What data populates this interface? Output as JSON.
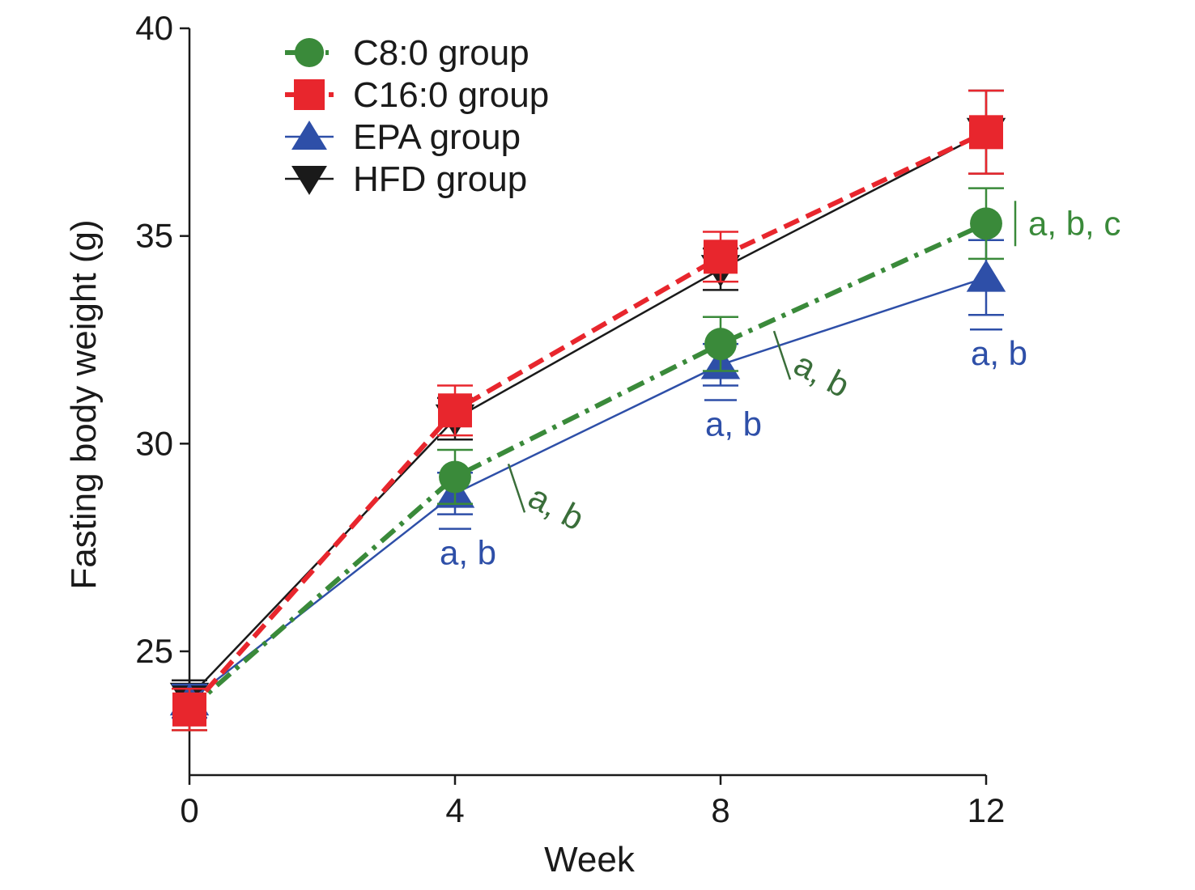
{
  "chart_data": {
    "type": "line",
    "title": "",
    "xlabel": "Week",
    "ylabel": "Fasting body weight (g)",
    "x": [
      0,
      4,
      8,
      12
    ],
    "xticks": [
      0,
      4,
      8,
      12
    ],
    "xtick_labels": [
      "0",
      "4",
      "8",
      "12"
    ],
    "xlim": [
      0,
      12
    ],
    "yticks": [
      25,
      30,
      35,
      40
    ],
    "ytick_labels": [
      "25",
      "30",
      "35",
      "40"
    ],
    "ylim": [
      22,
      40
    ],
    "grid": false,
    "legend_position": "top-left",
    "series": [
      {
        "name": "C8:0 group",
        "marker": "circle",
        "line": "dash-dot",
        "color": "#3a8a3a",
        "values": [
          23.6,
          29.2,
          32.4,
          35.3
        ],
        "err": [
          0.5,
          0.65,
          0.65,
          0.85
        ]
      },
      {
        "name": "C16:0 group",
        "marker": "square",
        "line": "dashed",
        "color": "#e8262d",
        "values": [
          23.6,
          30.8,
          34.5,
          37.5
        ],
        "err": [
          0.5,
          0.6,
          0.6,
          1.0
        ]
      },
      {
        "name": "EPA group",
        "marker": "triangle-up",
        "line": "solid",
        "color": "#2e4fa8",
        "values": [
          23.8,
          28.8,
          31.9,
          34.0
        ],
        "err": [
          0.4,
          0.5,
          0.5,
          0.9
        ]
      },
      {
        "name": "HFD group",
        "marker": "triangle-down",
        "line": "solid",
        "color": "#1a1a1a",
        "values": [
          23.9,
          30.6,
          34.2,
          37.5
        ],
        "err": [
          0.4,
          0.5,
          0.5,
          1.0
        ]
      }
    ],
    "annotations": [
      {
        "text": "a, b",
        "x": 4,
        "series": "EPA group",
        "color": "#2e4fa8"
      },
      {
        "text": "a, b",
        "x": 4,
        "series": "C8:0 group",
        "color": "#3a6e3a"
      },
      {
        "text": "a, b",
        "x": 8,
        "series": "EPA group",
        "color": "#2e4fa8"
      },
      {
        "text": "a, b",
        "x": 8,
        "series": "C8:0 group",
        "color": "#3a6e3a"
      },
      {
        "text": "a, b",
        "x": 12,
        "series": "EPA group",
        "color": "#2e4fa8"
      },
      {
        "text": "a, b, c",
        "x": 12,
        "series": "C8:0 group",
        "color": "#3a8a3a"
      }
    ]
  }
}
